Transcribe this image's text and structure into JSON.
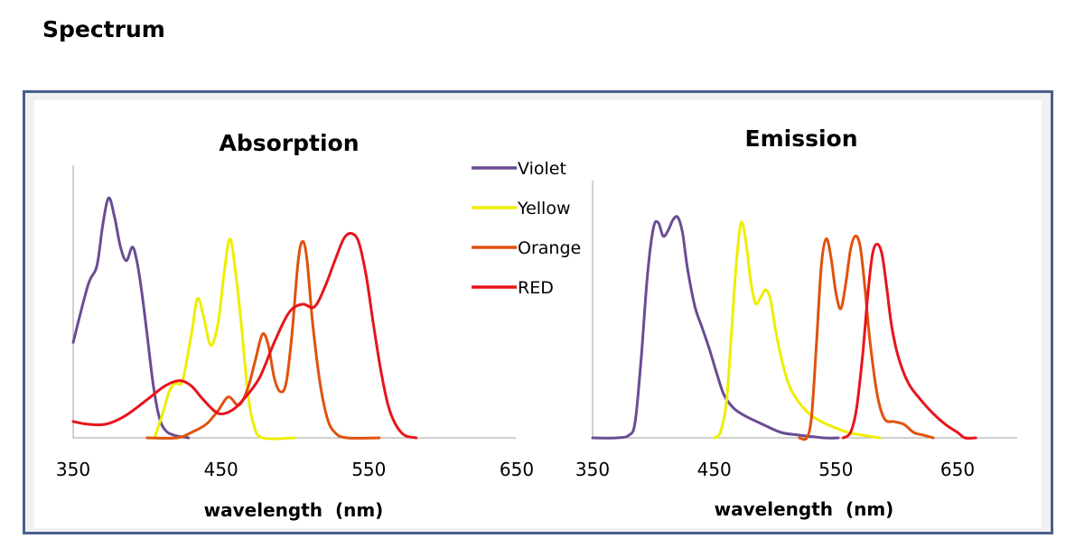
{
  "page": {
    "title": "Spectrum"
  },
  "chart_data": [
    {
      "type": "line",
      "title": "Absorption",
      "xlabel": "wavelength  (nm)",
      "ylabel": "",
      "xlim": [
        350,
        650
      ],
      "ylim": [
        0,
        1
      ],
      "xticks": [
        "350",
        "450",
        "550",
        "650"
      ],
      "grid": false,
      "legend": {
        "placement": "top-right",
        "entries": [
          "Violet",
          "Yellow",
          "Orange",
          "RED"
        ]
      },
      "series": [
        {
          "name": "Violet",
          "color": "#6a4c93",
          "points": [
            [
              350,
              0.35
            ],
            [
              360,
              0.56
            ],
            [
              366,
              0.63
            ],
            [
              370,
              0.78
            ],
            [
              374,
              0.88
            ],
            [
              378,
              0.81
            ],
            [
              382,
              0.7
            ],
            [
              386,
              0.65
            ],
            [
              390,
              0.7
            ],
            [
              393,
              0.65
            ],
            [
              396,
              0.55
            ],
            [
              400,
              0.38
            ],
            [
              404,
              0.2
            ],
            [
              408,
              0.08
            ],
            [
              412,
              0.03
            ],
            [
              418,
              0.01
            ],
            [
              428,
              0.0
            ]
          ]
        },
        {
          "name": "Yellow",
          "color": "#eeee00",
          "points": [
            [
              405,
              0.0
            ],
            [
              410,
              0.08
            ],
            [
              415,
              0.17
            ],
            [
              419,
              0.2
            ],
            [
              424,
              0.21
            ],
            [
              430,
              0.38
            ],
            [
              434,
              0.51
            ],
            [
              438,
              0.45
            ],
            [
              443,
              0.34
            ],
            [
              448,
              0.42
            ],
            [
              452,
              0.6
            ],
            [
              456,
              0.73
            ],
            [
              460,
              0.6
            ],
            [
              464,
              0.4
            ],
            [
              468,
              0.17
            ],
            [
              472,
              0.05
            ],
            [
              478,
              0.0
            ],
            [
              500,
              0.0
            ]
          ]
        },
        {
          "name": "Orange",
          "color": "#e0520e",
          "points": [
            [
              400,
              0.0
            ],
            [
              420,
              0.0
            ],
            [
              430,
              0.02
            ],
            [
              440,
              0.05
            ],
            [
              448,
              0.1
            ],
            [
              455,
              0.15
            ],
            [
              462,
              0.12
            ],
            [
              468,
              0.18
            ],
            [
              473,
              0.28
            ],
            [
              478,
              0.38
            ],
            [
              482,
              0.34
            ],
            [
              486,
              0.22
            ],
            [
              490,
              0.17
            ],
            [
              494,
              0.2
            ],
            [
              498,
              0.38
            ],
            [
              502,
              0.64
            ],
            [
              505,
              0.72
            ],
            [
              508,
              0.66
            ],
            [
              512,
              0.42
            ],
            [
              517,
              0.2
            ],
            [
              522,
              0.07
            ],
            [
              527,
              0.02
            ],
            [
              535,
              0.0
            ],
            [
              557,
              0.0
            ]
          ]
        },
        {
          "name": "RED",
          "color": "#e8141c",
          "points": [
            [
              350,
              0.06
            ],
            [
              360,
              0.05
            ],
            [
              372,
              0.05
            ],
            [
              385,
              0.08
            ],
            [
              400,
              0.14
            ],
            [
              412,
              0.19
            ],
            [
              422,
              0.21
            ],
            [
              430,
              0.19
            ],
            [
              438,
              0.14
            ],
            [
              448,
              0.09
            ],
            [
              457,
              0.1
            ],
            [
              465,
              0.14
            ],
            [
              476,
              0.22
            ],
            [
              486,
              0.35
            ],
            [
              496,
              0.46
            ],
            [
              505,
              0.49
            ],
            [
              513,
              0.48
            ],
            [
              520,
              0.55
            ],
            [
              527,
              0.65
            ],
            [
              533,
              0.73
            ],
            [
              538,
              0.75
            ],
            [
              543,
              0.72
            ],
            [
              548,
              0.6
            ],
            [
              553,
              0.42
            ],
            [
              558,
              0.25
            ],
            [
              563,
              0.12
            ],
            [
              568,
              0.05
            ],
            [
              574,
              0.01
            ],
            [
              582,
              0.0
            ]
          ]
        }
      ]
    },
    {
      "type": "line",
      "title": "Emission",
      "xlabel": "wavelength  (nm)",
      "ylabel": "",
      "xlim": [
        350,
        650
      ],
      "ylim": [
        0,
        1
      ],
      "xticks": [
        "350",
        "450",
        "550",
        "650"
      ],
      "grid": false,
      "legend": {
        "placement": "none",
        "entries": []
      },
      "series": [
        {
          "name": "Violet",
          "color": "#6a4c93",
          "points": [
            [
              350,
              0.0
            ],
            [
              370,
              0.0
            ],
            [
              380,
              0.01
            ],
            [
              385,
              0.06
            ],
            [
              390,
              0.3
            ],
            [
              395,
              0.6
            ],
            [
              400,
              0.78
            ],
            [
              404,
              0.8
            ],
            [
              408,
              0.75
            ],
            [
              412,
              0.77
            ],
            [
              416,
              0.81
            ],
            [
              420,
              0.82
            ],
            [
              424,
              0.76
            ],
            [
              428,
              0.63
            ],
            [
              434,
              0.49
            ],
            [
              440,
              0.41
            ],
            [
              446,
              0.33
            ],
            [
              452,
              0.24
            ],
            [
              458,
              0.16
            ],
            [
              466,
              0.11
            ],
            [
              476,
              0.08
            ],
            [
              490,
              0.05
            ],
            [
              505,
              0.02
            ],
            [
              520,
              0.01
            ],
            [
              540,
              0.0
            ],
            [
              552,
              0.0
            ]
          ]
        },
        {
          "name": "Yellow",
          "color": "#eeee00",
          "points": [
            [
              450,
              0.0
            ],
            [
              455,
              0.02
            ],
            [
              460,
              0.13
            ],
            [
              464,
              0.38
            ],
            [
              468,
              0.64
            ],
            [
              472,
              0.8
            ],
            [
              476,
              0.73
            ],
            [
              480,
              0.58
            ],
            [
              484,
              0.5
            ],
            [
              488,
              0.52
            ],
            [
              492,
              0.55
            ],
            [
              496,
              0.52
            ],
            [
              500,
              0.41
            ],
            [
              506,
              0.28
            ],
            [
              512,
              0.19
            ],
            [
              520,
              0.13
            ],
            [
              528,
              0.09
            ],
            [
              538,
              0.06
            ],
            [
              548,
              0.04
            ],
            [
              560,
              0.02
            ],
            [
              572,
              0.01
            ],
            [
              586,
              0.0
            ]
          ]
        },
        {
          "name": "Orange",
          "color": "#e0520e",
          "points": [
            [
              520,
              0.0
            ],
            [
              526,
              0.0
            ],
            [
              530,
              0.08
            ],
            [
              534,
              0.35
            ],
            [
              538,
              0.64
            ],
            [
              542,
              0.74
            ],
            [
              546,
              0.67
            ],
            [
              550,
              0.54
            ],
            [
              554,
              0.48
            ],
            [
              558,
              0.57
            ],
            [
              562,
              0.7
            ],
            [
              566,
              0.75
            ],
            [
              570,
              0.71
            ],
            [
              574,
              0.55
            ],
            [
              578,
              0.36
            ],
            [
              584,
              0.16
            ],
            [
              590,
              0.07
            ],
            [
              598,
              0.06
            ],
            [
              606,
              0.05
            ],
            [
              614,
              0.02
            ],
            [
              622,
              0.01
            ],
            [
              630,
              0.0
            ]
          ]
        },
        {
          "name": "RED",
          "color": "#e8141c",
          "points": [
            [
              556,
              0.0
            ],
            [
              562,
              0.02
            ],
            [
              567,
              0.11
            ],
            [
              572,
              0.31
            ],
            [
              576,
              0.52
            ],
            [
              580,
              0.68
            ],
            [
              584,
              0.72
            ],
            [
              588,
              0.68
            ],
            [
              592,
              0.55
            ],
            [
              596,
              0.41
            ],
            [
              602,
              0.29
            ],
            [
              610,
              0.2
            ],
            [
              620,
              0.14
            ],
            [
              630,
              0.09
            ],
            [
              640,
              0.05
            ],
            [
              650,
              0.02
            ],
            [
              656,
              0.0
            ],
            [
              665,
              0.0
            ]
          ]
        }
      ]
    }
  ]
}
